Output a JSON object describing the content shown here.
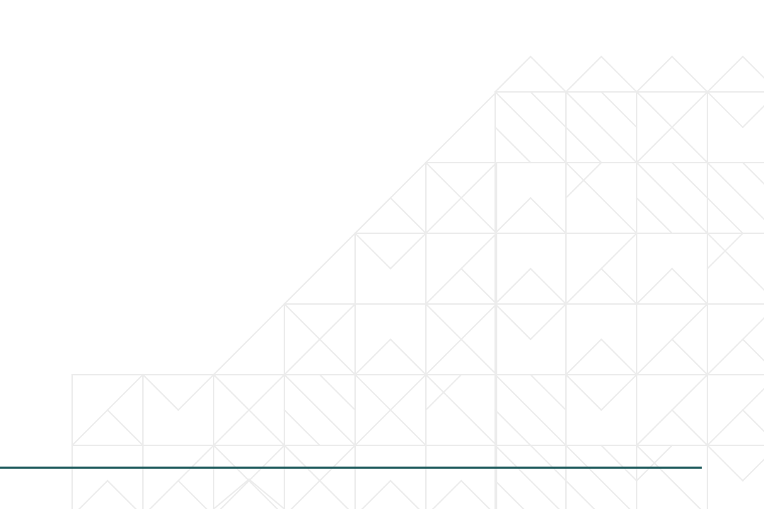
{
  "slide": {
    "background_color": "#ffffff",
    "pattern_color": "#ececec",
    "accent_rule_color": "#1f5b5d"
  }
}
